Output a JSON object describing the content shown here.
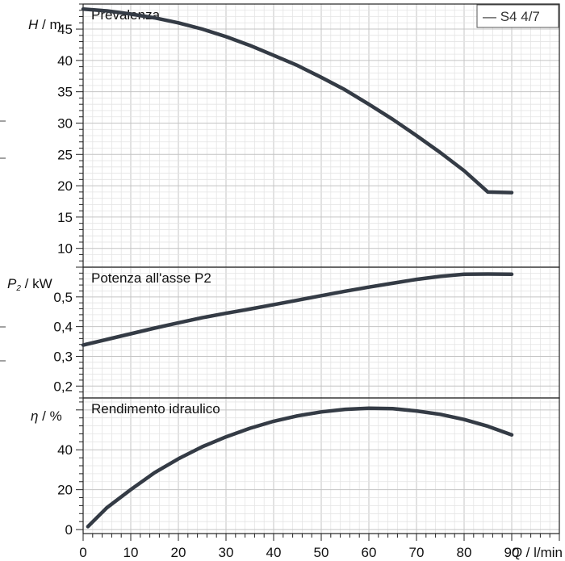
{
  "colors": {
    "curve": "#343b45",
    "grid": "#d3d3d3",
    "frame": "#222222"
  },
  "chart_data": [
    {
      "type": "line",
      "title": "Prevalenza",
      "ylabel": {
        "symbol": "H",
        "unit": " / m"
      },
      "xlim": [
        0,
        100
      ],
      "ylim": [
        7,
        49
      ],
      "yticks": [
        "10",
        "15",
        "20",
        "25",
        "30",
        "35",
        "40",
        "45"
      ],
      "grid": true,
      "legend": {
        "label": "— S4 4/7",
        "position": "top-right"
      },
      "series": [
        {
          "name": "S4 4/7",
          "x": [
            0,
            5,
            10,
            15,
            20,
            25,
            30,
            35,
            40,
            45,
            50,
            55,
            60,
            65,
            70,
            75,
            80,
            85,
            90
          ],
          "y": [
            48.2,
            47.9,
            47.4,
            46.8,
            46.0,
            45.0,
            43.8,
            42.4,
            40.8,
            39.2,
            37.3,
            35.3,
            33.0,
            30.6,
            28.0,
            25.3,
            22.4,
            19.0,
            18.9
          ]
        }
      ]
    },
    {
      "type": "line",
      "title": "Potenza all'asse P2",
      "ylabel": {
        "symbol": "P",
        "sub": "2",
        "unit": " / kW"
      },
      "xlim": [
        0,
        100
      ],
      "ylim": [
        0.16,
        0.6
      ],
      "yticks": [
        "0,2",
        "0,3",
        "0,4",
        "0,5"
      ],
      "grid": true,
      "series": [
        {
          "name": "S4 4/7",
          "x": [
            0,
            5,
            10,
            15,
            20,
            25,
            30,
            35,
            40,
            45,
            50,
            55,
            60,
            65,
            70,
            75,
            80,
            85,
            90
          ],
          "y": [
            0.338,
            0.357,
            0.376,
            0.395,
            0.413,
            0.43,
            0.445,
            0.459,
            0.474,
            0.489,
            0.504,
            0.519,
            0.533,
            0.546,
            0.559,
            0.569,
            0.576,
            0.577,
            0.576
          ]
        }
      ]
    },
    {
      "type": "line",
      "title": "Rendimento idraulico",
      "ylabel": {
        "symbol": "η",
        "unit": " / %"
      },
      "xlim": [
        0,
        100
      ],
      "ylim": [
        -2,
        66
      ],
      "yticks": [
        "0",
        "20",
        "40"
      ],
      "grid": true,
      "x_tick_labels": [
        "0",
        "10",
        "20",
        "30",
        "40",
        "50",
        "60",
        "70",
        "80",
        "90"
      ],
      "xlabel": {
        "symbol": "Q",
        "unit": " / l/min"
      },
      "series": [
        {
          "name": "S4 4/7",
          "x": [
            1,
            5,
            10,
            15,
            20,
            25,
            30,
            35,
            40,
            45,
            50,
            55,
            60,
            65,
            70,
            75,
            80,
            85,
            90
          ],
          "y": [
            1.5,
            11,
            20,
            28.5,
            35.5,
            41.5,
            46.5,
            50.8,
            54.3,
            57.0,
            59.0,
            60.3,
            60.8,
            60.6,
            59.5,
            57.8,
            55.2,
            51.8,
            47.5
          ]
        }
      ]
    }
  ]
}
